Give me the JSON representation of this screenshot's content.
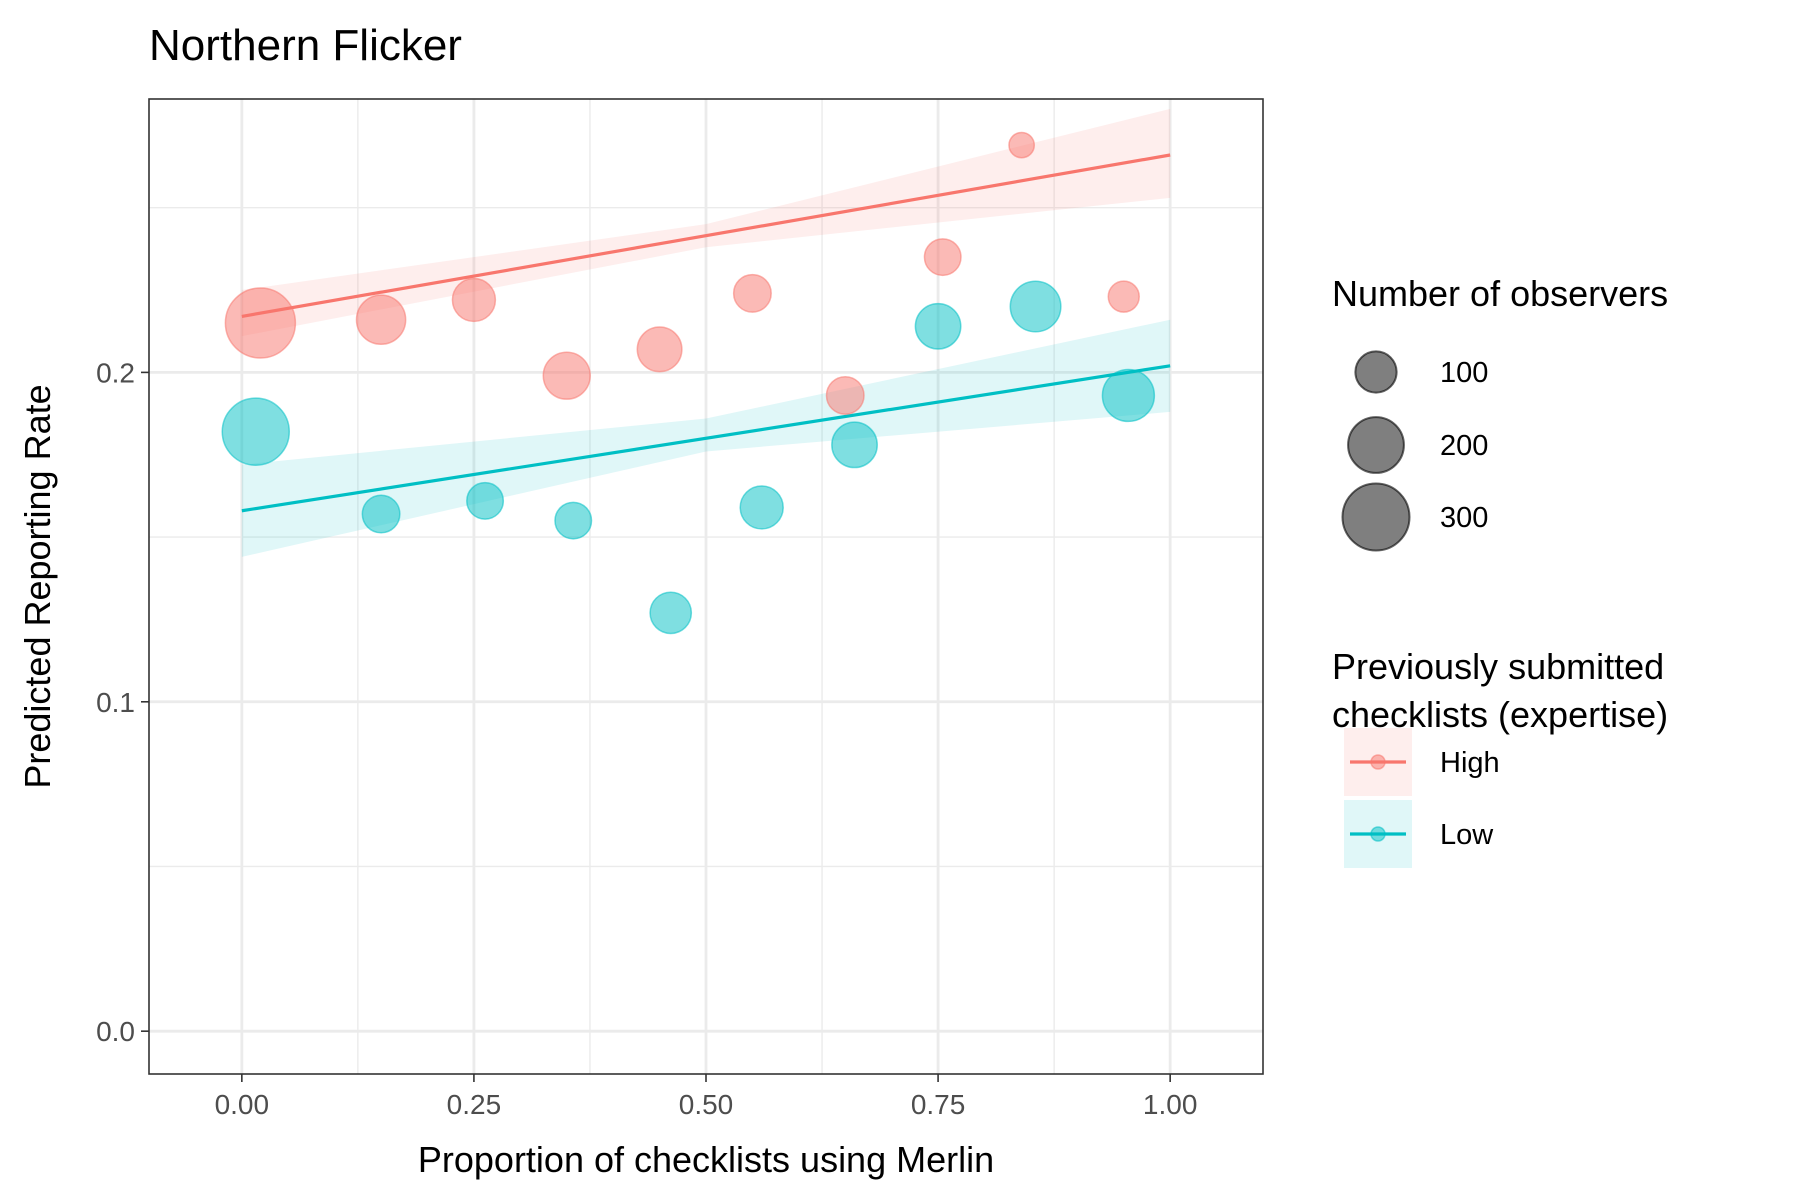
{
  "chart_data": {
    "type": "scatter",
    "title": "Northern Flicker",
    "xlabel": "Proportion of checklists using Merlin",
    "ylabel": "Predicted Reporting Rate",
    "xlim": [
      -0.1,
      1.1
    ],
    "ylim": [
      -0.013,
      0.283
    ],
    "x_ticks": [
      0,
      0.25,
      0.5,
      0.75,
      1
    ],
    "x_tick_labels": [
      "0.00",
      "0.25",
      "0.50",
      "0.75",
      "1.00"
    ],
    "y_ticks": [
      0,
      0.1,
      0.2
    ],
    "y_tick_labels": [
      "0.0",
      "0.1",
      "0.2"
    ],
    "grid": true,
    "size_legend": {
      "title": "Number of observers",
      "entries": [
        {
          "label": "100",
          "value": 100
        },
        {
          "label": "200",
          "value": 200
        },
        {
          "label": "300",
          "value": 300
        }
      ]
    },
    "color_legend": {
      "title_lines": [
        "Previously submitted",
        "checklists (expertise)"
      ],
      "placement": "right"
    },
    "series": [
      {
        "name": "High",
        "color": "#F8766D",
        "band_color": "#F8766D",
        "points": [
          {
            "x": 0.02,
            "y": 0.215,
            "n": 330
          },
          {
            "x": 0.15,
            "y": 0.216,
            "n": 150
          },
          {
            "x": 0.25,
            "y": 0.222,
            "n": 110
          },
          {
            "x": 0.35,
            "y": 0.199,
            "n": 135
          },
          {
            "x": 0.45,
            "y": 0.207,
            "n": 120
          },
          {
            "x": 0.55,
            "y": 0.224,
            "n": 80
          },
          {
            "x": 0.65,
            "y": 0.193,
            "n": 80
          },
          {
            "x": 0.755,
            "y": 0.235,
            "n": 75
          },
          {
            "x": 0.84,
            "y": 0.269,
            "n": 30
          },
          {
            "x": 0.95,
            "y": 0.223,
            "n": 50
          }
        ],
        "trend": {
          "x": [
            0,
            1
          ],
          "y": [
            0.217,
            0.266
          ]
        },
        "ci": {
          "x": [
            0,
            0.5,
            1
          ],
          "lower": [
            0.211,
            0.238,
            0.253
          ],
          "upper": [
            0.225,
            0.245,
            0.28
          ]
        }
      },
      {
        "name": "Low",
        "color": "#00BFC4",
        "band_color": "#00BFC4",
        "points": [
          {
            "x": 0.015,
            "y": 0.182,
            "n": 300
          },
          {
            "x": 0.15,
            "y": 0.157,
            "n": 80
          },
          {
            "x": 0.262,
            "y": 0.161,
            "n": 75
          },
          {
            "x": 0.357,
            "y": 0.155,
            "n": 75
          },
          {
            "x": 0.462,
            "y": 0.127,
            "n": 100
          },
          {
            "x": 0.56,
            "y": 0.159,
            "n": 110
          },
          {
            "x": 0.66,
            "y": 0.178,
            "n": 125
          },
          {
            "x": 0.75,
            "y": 0.214,
            "n": 125
          },
          {
            "x": 0.855,
            "y": 0.22,
            "n": 160
          },
          {
            "x": 0.955,
            "y": 0.193,
            "n": 170
          }
        ],
        "trend": {
          "x": [
            0,
            1
          ],
          "y": [
            0.158,
            0.202
          ]
        },
        "ci": {
          "x": [
            0,
            0.5,
            1
          ],
          "lower": [
            0.144,
            0.176,
            0.188
          ],
          "upper": [
            0.172,
            0.186,
            0.216
          ]
        }
      }
    ]
  }
}
